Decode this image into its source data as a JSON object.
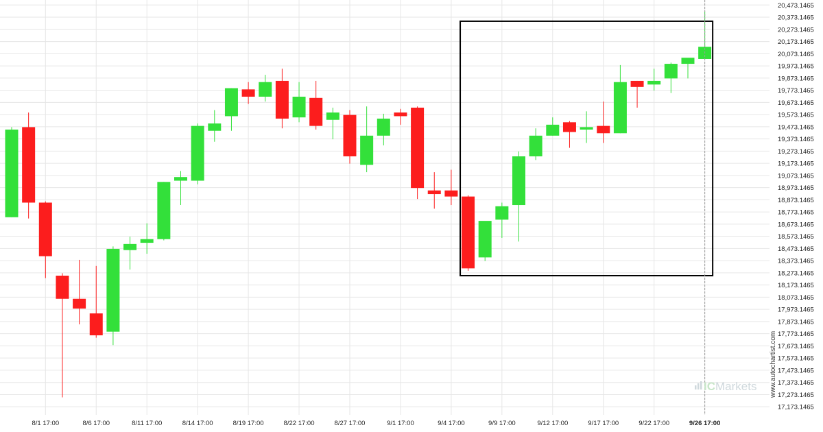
{
  "chart_data": {
    "type": "candlestick",
    "colors": {
      "up": "#33e03a",
      "down": "#fc1d1d",
      "grid": "#e6e6e6",
      "box": "#000000",
      "cursor": "#999999"
    },
    "y_axis": {
      "range": [
        17123.1465,
        20513.1465
      ],
      "ticks": [
        "20,473.1465",
        "20,373.1465",
        "20,273.1465",
        "20,173.1465",
        "20,073.1465",
        "19,973.1465",
        "19,873.1465",
        "19,773.1465",
        "19,673.1465",
        "19,573.1465",
        "19,473.1465",
        "19,373.1465",
        "19,273.1465",
        "19,173.1465",
        "19,073.1465",
        "18,973.1465",
        "18,873.1465",
        "18,773.1465",
        "18,673.1465",
        "18,573.1465",
        "18,473.1465",
        "18,373.1465",
        "18,273.1465",
        "18,173.1465",
        "18,073.1465",
        "17,973.1465",
        "17,873.1465",
        "17,773.1465",
        "17,673.1465",
        "17,573.1465",
        "17,473.1465",
        "17,373.1465",
        "17,273.1465",
        "17,173.1465"
      ],
      "tick_values": [
        20473.1465,
        20373.1465,
        20273.1465,
        20173.1465,
        20073.1465,
        19973.1465,
        19873.1465,
        19773.1465,
        19673.1465,
        19573.1465,
        19473.1465,
        19373.1465,
        19273.1465,
        19173.1465,
        19073.1465,
        18973.1465,
        18873.1465,
        18773.1465,
        18673.1465,
        18573.1465,
        18473.1465,
        18373.1465,
        18273.1465,
        18173.1465,
        18073.1465,
        17973.1465,
        17873.1465,
        17773.1465,
        17673.1465,
        17573.1465,
        17473.1465,
        17373.1465,
        17273.1465,
        17173.1465
      ]
    },
    "x_axis": {
      "labels": [
        {
          "label": "8/1 17:00",
          "index": 3
        },
        {
          "label": "8/6 17:00",
          "index": 6
        },
        {
          "label": "8/11 17:00",
          "index": 9
        },
        {
          "label": "8/14 17:00",
          "index": 12
        },
        {
          "label": "8/19 17:00",
          "index": 15
        },
        {
          "label": "8/22 17:00",
          "index": 18
        },
        {
          "label": "8/27 17:00",
          "index": 21
        },
        {
          "label": "9/1 17:00",
          "index": 24
        },
        {
          "label": "9/4 17:00",
          "index": 27
        },
        {
          "label": "9/9 17:00",
          "index": 30
        },
        {
          "label": "9/12 17:00",
          "index": 33
        },
        {
          "label": "9/17 17:00",
          "index": 36
        },
        {
          "label": "9/22 17:00",
          "index": 39
        },
        {
          "label": "9/26 17:00",
          "index": 42,
          "active": true
        }
      ]
    },
    "candles": [
      {
        "o": 18730,
        "h": 19470,
        "l": 18730,
        "c": 19450
      },
      {
        "o": 19470,
        "h": 19590,
        "l": 18720,
        "c": 18850
      },
      {
        "o": 18850,
        "h": 18860,
        "l": 18230,
        "c": 18410
      },
      {
        "o": 18250,
        "h": 18270,
        "l": 17250,
        "c": 18060
      },
      {
        "o": 18060,
        "h": 18380,
        "l": 17850,
        "c": 17980
      },
      {
        "o": 17940,
        "h": 18330,
        "l": 17740,
        "c": 17760
      },
      {
        "o": 17790,
        "h": 18490,
        "l": 17680,
        "c": 18470
      },
      {
        "o": 18460,
        "h": 18570,
        "l": 18300,
        "c": 18510
      },
      {
        "o": 18520,
        "h": 18680,
        "l": 18430,
        "c": 18550
      },
      {
        "o": 18550,
        "h": 19020,
        "l": 18540,
        "c": 19020
      },
      {
        "o": 19030,
        "h": 19110,
        "l": 18830,
        "c": 19060
      },
      {
        "o": 19030,
        "h": 19500,
        "l": 19000,
        "c": 19480
      },
      {
        "o": 19440,
        "h": 19610,
        "l": 19350,
        "c": 19500
      },
      {
        "o": 19560,
        "h": 19790,
        "l": 19440,
        "c": 19790
      },
      {
        "o": 19780,
        "h": 19840,
        "l": 19660,
        "c": 19720
      },
      {
        "o": 19720,
        "h": 19900,
        "l": 19680,
        "c": 19840
      },
      {
        "o": 19850,
        "h": 19950,
        "l": 19460,
        "c": 19540
      },
      {
        "o": 19550,
        "h": 19840,
        "l": 19510,
        "c": 19720
      },
      {
        "o": 19710,
        "h": 19850,
        "l": 19450,
        "c": 19480
      },
      {
        "o": 19530,
        "h": 19630,
        "l": 19370,
        "c": 19590
      },
      {
        "o": 19570,
        "h": 19610,
        "l": 19170,
        "c": 19230
      },
      {
        "o": 19160,
        "h": 19640,
        "l": 19100,
        "c": 19400
      },
      {
        "o": 19400,
        "h": 19580,
        "l": 19320,
        "c": 19540
      },
      {
        "o": 19590,
        "h": 19620,
        "l": 19490,
        "c": 19560
      },
      {
        "o": 19630,
        "h": 19640,
        "l": 18880,
        "c": 18970
      },
      {
        "o": 18950,
        "h": 19100,
        "l": 18800,
        "c": 18920
      },
      {
        "o": 18950,
        "h": 19120,
        "l": 18830,
        "c": 18900
      },
      {
        "o": 18900,
        "h": 18910,
        "l": 18290,
        "c": 18310
      },
      {
        "o": 18400,
        "h": 18690,
        "l": 18370,
        "c": 18700
      },
      {
        "o": 18710,
        "h": 18850,
        "l": 18560,
        "c": 18820
      },
      {
        "o": 18830,
        "h": 19270,
        "l": 18530,
        "c": 19230
      },
      {
        "o": 19230,
        "h": 19460,
        "l": 19200,
        "c": 19400
      },
      {
        "o": 19400,
        "h": 19550,
        "l": 19400,
        "c": 19490
      },
      {
        "o": 19510,
        "h": 19520,
        "l": 19300,
        "c": 19430
      },
      {
        "o": 19450,
        "h": 19600,
        "l": 19340,
        "c": 19470
      },
      {
        "o": 19480,
        "h": 19680,
        "l": 19340,
        "c": 19420
      },
      {
        "o": 19420,
        "h": 19980,
        "l": 19420,
        "c": 19840
      },
      {
        "o": 19850,
        "h": 19850,
        "l": 19630,
        "c": 19800
      },
      {
        "o": 19820,
        "h": 19950,
        "l": 19770,
        "c": 19850
      },
      {
        "o": 19870,
        "h": 20000,
        "l": 19750,
        "c": 19990
      },
      {
        "o": 19990,
        "h": 20030,
        "l": 19870,
        "c": 20040
      },
      {
        "o": 20030,
        "h": 20420,
        "l": 20030,
        "c": 20130
      }
    ],
    "annotation_box": {
      "from_index": 27,
      "to_index": 41,
      "price_high": 20340,
      "price_low": 18250
    },
    "cursor_index": 41,
    "watermark": "www.autochartist.com",
    "brand": {
      "part1": "IC",
      "part2": "Markets"
    }
  }
}
